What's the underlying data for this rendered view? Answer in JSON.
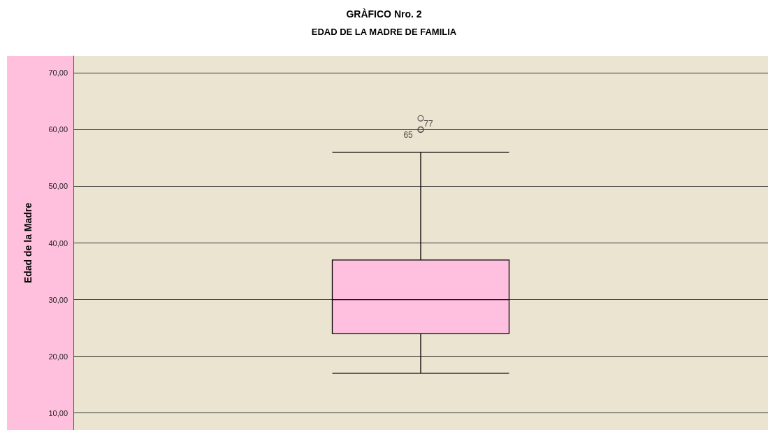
{
  "chart_data": {
    "type": "box",
    "title": "GRÀFICO Nro. 2",
    "subtitle": "EDAD DE LA MADRE DE FAMILIA",
    "ylabel": "Edad de la Madre",
    "categories": [
      null
    ],
    "boxes": [
      {
        "low": 17,
        "q1": 24,
        "median": 30,
        "q3": 37,
        "high": 56,
        "outliers": [
          62,
          60,
          60
        ]
      }
    ],
    "color": "#ffc0e0",
    "ylim": [
      7,
      73
    ],
    "yticks": [
      {
        "value": 10,
        "label": "10,00"
      },
      {
        "value": 20,
        "label": "20,00"
      },
      {
        "value": 30,
        "label": "30,00"
      },
      {
        "value": 40,
        "label": "40,00"
      },
      {
        "value": 50,
        "label": "50,00"
      },
      {
        "value": 60,
        "label": "60,00"
      },
      {
        "value": 70,
        "label": "70,00"
      }
    ],
    "grid": "y",
    "tick_labels": "y",
    "marker": "circle",
    "annotations": [
      "77",
      "65"
    ]
  }
}
